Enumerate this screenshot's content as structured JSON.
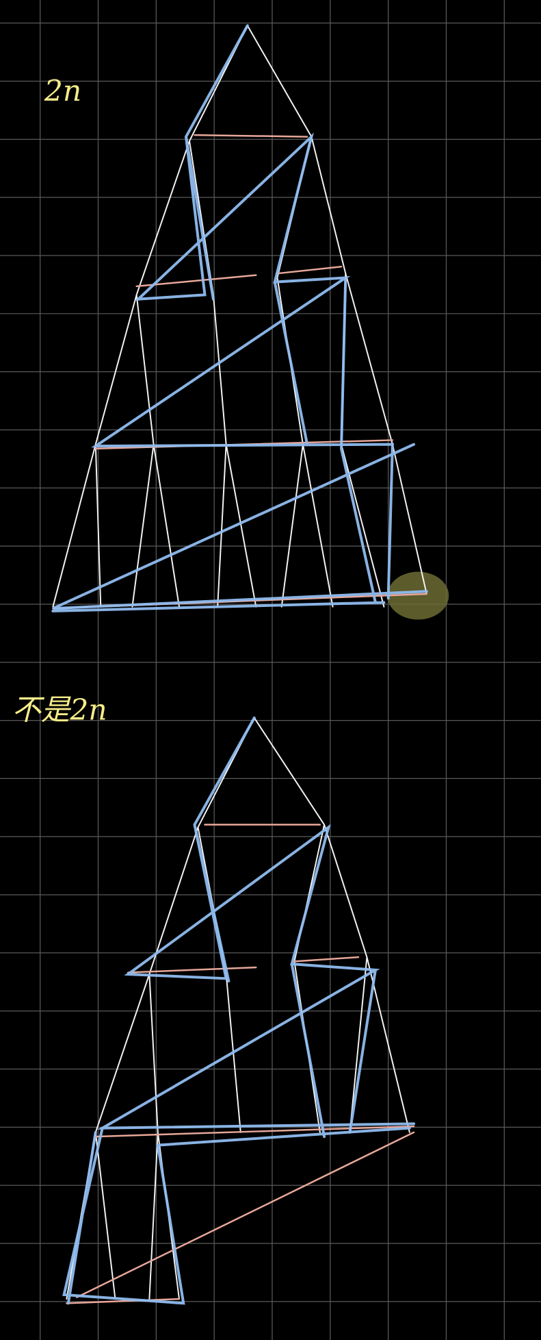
{
  "notes": [
    {
      "label": "2n"
    },
    {
      "label": "不是2n"
    }
  ]
}
